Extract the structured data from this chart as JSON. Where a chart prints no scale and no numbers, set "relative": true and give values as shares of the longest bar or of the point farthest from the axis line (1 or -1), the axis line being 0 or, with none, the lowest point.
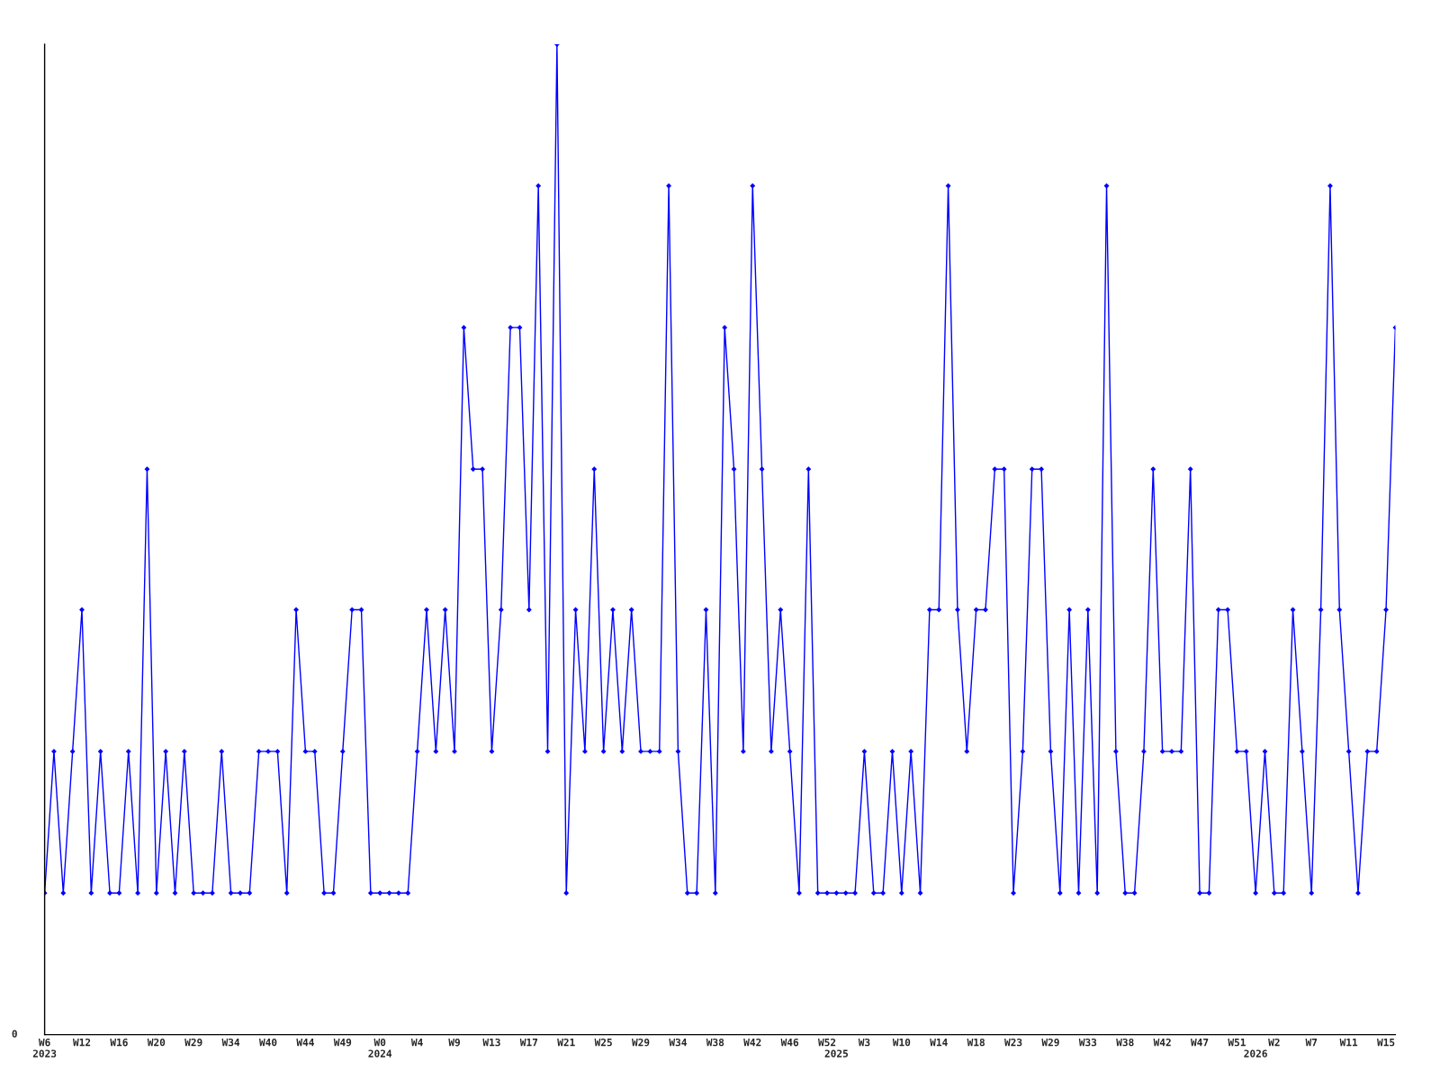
{
  "chart_data": {
    "type": "line",
    "relative": true,
    "marker": "diamond",
    "line_style": "solid",
    "grid": false,
    "annotations": [
      "0"
    ],
    "categories": [
      "W6\n2023",
      null,
      null,
      null,
      "W12",
      null,
      null,
      null,
      "W16",
      null,
      null,
      null,
      "W20",
      null,
      null,
      null,
      "W29",
      null,
      null,
      null,
      "W34",
      null,
      null,
      null,
      "W40",
      null,
      null,
      null,
      "W44",
      null,
      null,
      null,
      "W49",
      null,
      null,
      null,
      "W0\n2024",
      null,
      null,
      null,
      "W4",
      null,
      null,
      null,
      "W9",
      null,
      null,
      null,
      "W13",
      null,
      null,
      null,
      "W17",
      null,
      null,
      null,
      "W21",
      null,
      null,
      null,
      "W25",
      null,
      null,
      null,
      "W29",
      null,
      null,
      null,
      "W34",
      null,
      null,
      null,
      "W38",
      null,
      null,
      null,
      "W42",
      null,
      null,
      null,
      "W46",
      null,
      null,
      null,
      "W52",
      "\n2025",
      null,
      null,
      "W3",
      null,
      null,
      null,
      "W10",
      null,
      null,
      null,
      "W14",
      null,
      null,
      null,
      "W18",
      null,
      null,
      null,
      "W23",
      null,
      null,
      null,
      "W29",
      null,
      null,
      null,
      "W33",
      null,
      null,
      null,
      "W38",
      null,
      null,
      null,
      "W42",
      null,
      null,
      null,
      "W47",
      null,
      null,
      null,
      "W51",
      null,
      "\n2026",
      null,
      "W2",
      null,
      null,
      null,
      "W7",
      null,
      null,
      null,
      "W11",
      null,
      null,
      null,
      "W15",
      null
    ],
    "series": [
      {
        "color": "#0000ff",
        "values": [
          0.143,
          0.286,
          0.143,
          0.286,
          0.429,
          0.143,
          0.286,
          0.143,
          0.143,
          0.286,
          0.143,
          0.571,
          0.143,
          0.286,
          0.143,
          0.286,
          0.143,
          0.143,
          0.143,
          0.286,
          0.143,
          0.143,
          0.143,
          0.286,
          0.286,
          0.286,
          0.143,
          0.429,
          0.286,
          0.286,
          0.143,
          0.143,
          0.286,
          0.429,
          0.429,
          0.143,
          0.143,
          0.143,
          0.143,
          0.143,
          0.286,
          0.429,
          0.286,
          0.429,
          0.286,
          0.714,
          0.571,
          0.571,
          0.286,
          0.429,
          0.714,
          0.714,
          0.429,
          0.857,
          0.286,
          1,
          0.143,
          0.429,
          0.286,
          0.571,
          0.286,
          0.429,
          0.286,
          0.429,
          0.286,
          0.286,
          0.286,
          0.857,
          0.286,
          0.143,
          0.143,
          0.429,
          0.143,
          0.714,
          0.571,
          0.286,
          0.857,
          0.571,
          0.286,
          0.429,
          0.286,
          0.143,
          0.571,
          0.143,
          0.143,
          0.143,
          0.143,
          0.143,
          0.286,
          0.143,
          0.143,
          0.286,
          0.143,
          0.286,
          0.143,
          0.429,
          0.429,
          0.857,
          0.429,
          0.286,
          0.429,
          0.429,
          0.571,
          0.571,
          0.143,
          0.286,
          0.571,
          0.571,
          0.286,
          0.143,
          0.429,
          0.143,
          0.429,
          0.143,
          0.857,
          0.286,
          0.143,
          0.143,
          0.286,
          0.571,
          0.286,
          0.286,
          0.286,
          0.571,
          0.143,
          0.143,
          0.429,
          0.429,
          0.286,
          0.286,
          0.143,
          0.286,
          0.143,
          0.143,
          0.429,
          0.286,
          0.143,
          0.429,
          0.857,
          0.429,
          0.286,
          0.143,
          0.286,
          0.286,
          0.429,
          0.714
        ]
      }
    ]
  }
}
